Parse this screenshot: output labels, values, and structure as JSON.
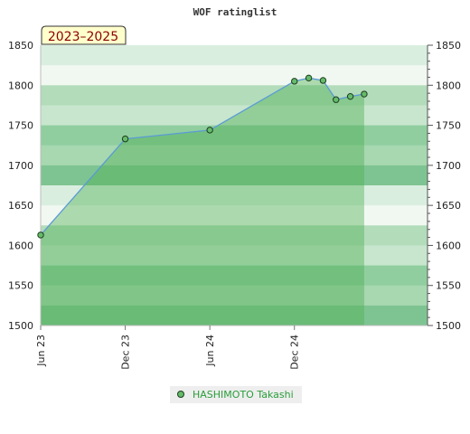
{
  "chart_data": {
    "type": "area",
    "title": "WOF ratinglist",
    "period_label": "2023–2025",
    "xlabel": "",
    "ylabel": "",
    "ylim": [
      1500,
      1850
    ],
    "xlim": [
      "2023-06-01",
      "2025-09-15"
    ],
    "y_ticks": [
      1500,
      1550,
      1600,
      1650,
      1700,
      1750,
      1800,
      1850
    ],
    "x_ticks": [
      {
        "date": "2023-06-01",
        "label": "Jun 23"
      },
      {
        "date": "2023-12-01",
        "label": "Dec 23"
      },
      {
        "date": "2024-06-01",
        "label": "Jun 24"
      },
      {
        "date": "2024-12-01",
        "label": "Dec 24"
      }
    ],
    "series": [
      {
        "name": "HASHIMOTO Takashi",
        "color": "#5b9bd5",
        "fill_color": "#4caf50",
        "marker_color": "#66bb6a",
        "points": [
          {
            "x": "2023-06-01",
            "y": 1613
          },
          {
            "x": "2023-12-01",
            "y": 1733
          },
          {
            "x": "2024-06-01",
            "y": 1744
          },
          {
            "x": "2024-12-01",
            "y": 1805
          },
          {
            "x": "2025-01-01",
            "y": 1809
          },
          {
            "x": "2025-02-01",
            "y": 1806
          },
          {
            "x": "2025-03-01",
            "y": 1782
          },
          {
            "x": "2025-04-01",
            "y": 1786
          },
          {
            "x": "2025-05-01",
            "y": 1789
          }
        ]
      }
    ],
    "grid": true,
    "legend_position": "bottom-center",
    "band_colors": [
      "#d9eedf",
      "#f1f8f1",
      "#b2dcba",
      "#c7e6cd",
      "#90ce9f",
      "#a7d8b0",
      "#7ec492"
    ]
  }
}
